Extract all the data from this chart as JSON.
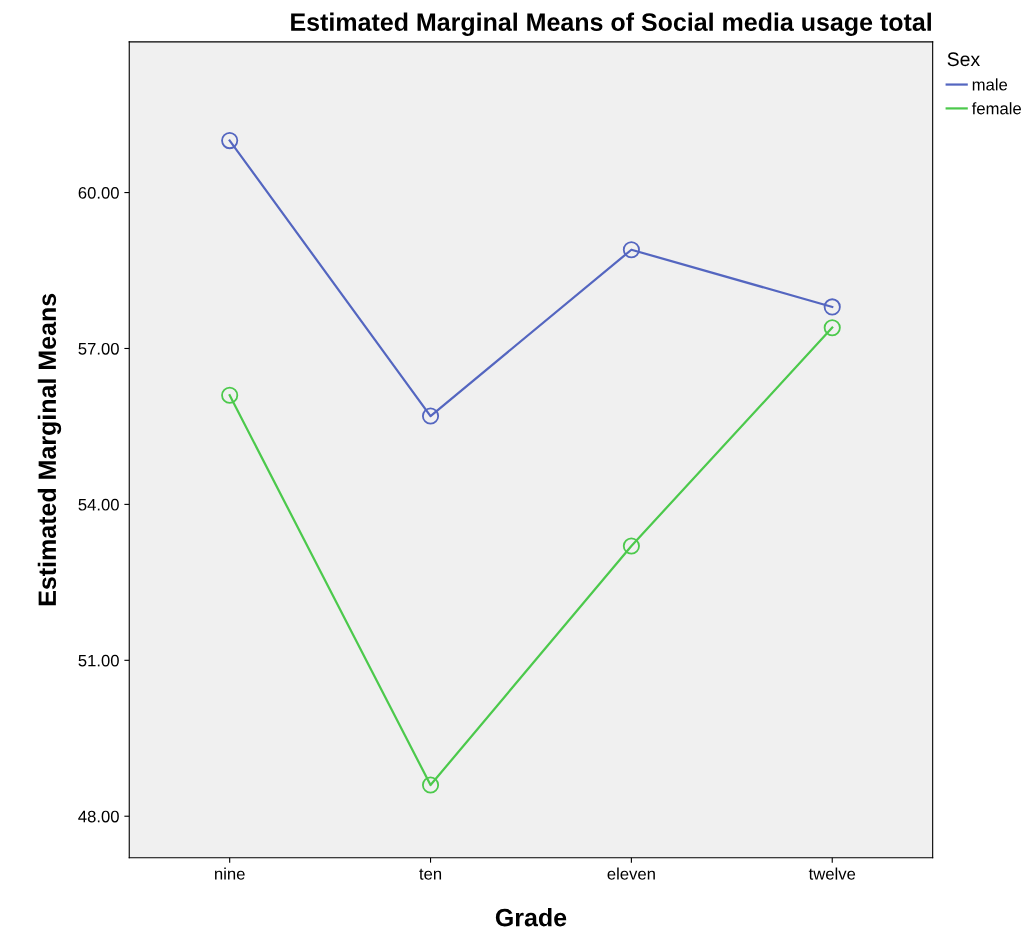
{
  "chart_data": {
    "type": "line",
    "title": "Estimated Marginal Means of Social media usage total",
    "xlabel": "Grade",
    "ylabel": "Estimated Marginal Means",
    "legend_title": "Sex",
    "categories": [
      "nine",
      "ten",
      "eleven",
      "twelve"
    ],
    "series": [
      {
        "name": "male",
        "color": "#5466c0",
        "values": [
          61.0,
          55.7,
          58.9,
          57.8
        ]
      },
      {
        "name": "female",
        "color": "#4cc94c",
        "values": [
          56.1,
          48.6,
          53.2,
          57.4
        ]
      }
    ],
    "ylim": [
      47.2,
      62.9
    ],
    "yticks": [
      {
        "value": 48,
        "label": "48.00"
      },
      {
        "value": 51,
        "label": "51.00"
      },
      {
        "value": 54,
        "label": "54.00"
      },
      {
        "value": 57,
        "label": "57.00"
      },
      {
        "value": 60,
        "label": "60.00"
      }
    ],
    "grid": false,
    "legend": "top right",
    "marker": "circle",
    "line_style": "solid"
  }
}
